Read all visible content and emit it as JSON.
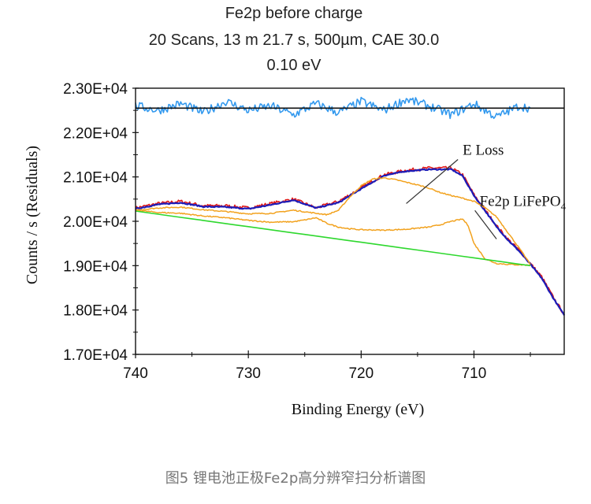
{
  "title": {
    "line1": "Fe2p before charge",
    "line2": "20 Scans,   13 m 21.7 s,    500µm,    CAE 30.0",
    "line3": "0.10 eV"
  },
  "caption": "图5 锂电池正极Fe2p高分辨窄扫分析谱图",
  "chart_data": {
    "type": "line",
    "xlabel": "Binding Energy (eV)",
    "ylabel": "Counts / s   (Residuals)",
    "xlim": [
      740,
      702
    ],
    "ylim": [
      17000,
      23000
    ],
    "x_ticks": [
      740,
      730,
      720,
      710
    ],
    "y_ticks": [
      {
        "value": 17000,
        "label": "1.70E+04"
      },
      {
        "value": 18000,
        "label": "1.80E+04"
      },
      {
        "value": 19000,
        "label": "1.90E+04"
      },
      {
        "value": 20000,
        "label": "2.00E+04"
      },
      {
        "value": 21000,
        "label": "2.10E+04"
      },
      {
        "value": 22000,
        "label": "2.20E+04"
      },
      {
        "value": 23000,
        "label": "2.30E+04"
      }
    ],
    "residual_baseline": 22550,
    "annotations": [
      {
        "text": "E Loss",
        "x": 711,
        "y": 21500,
        "arrow_to": [
          716,
          20400
        ]
      },
      {
        "text": "Fe2p LiFePO",
        "subscript": "4",
        "x": 709.5,
        "y": 20350,
        "arrow_to": [
          708,
          19600
        ]
      }
    ],
    "series": [
      {
        "role": "measured",
        "color": "#e01818",
        "x": [
          740,
          738,
          736,
          734,
          732,
          730,
          728,
          726,
          724,
          722,
          720,
          718,
          716,
          714,
          712,
          711,
          710,
          709,
          708,
          707,
          706,
          705,
          704,
          703,
          702
        ],
        "y": [
          20300,
          20400,
          20450,
          20350,
          20350,
          20300,
          20400,
          20500,
          20300,
          20450,
          20750,
          21050,
          21150,
          21200,
          21200,
          21050,
          20600,
          20250,
          19900,
          19600,
          19350,
          19050,
          18750,
          18300,
          17900
        ]
      },
      {
        "role": "envelope",
        "color": "#1c1cb8",
        "x": [
          740,
          738,
          736,
          734,
          732,
          730,
          728,
          726,
          724,
          722,
          720,
          718,
          716,
          714,
          712,
          711,
          710,
          709,
          708,
          707,
          706,
          705,
          704,
          703,
          702
        ],
        "y": [
          20280,
          20380,
          20420,
          20330,
          20320,
          20280,
          20370,
          20480,
          20300,
          20420,
          20730,
          21030,
          21130,
          21170,
          21170,
          21020,
          20580,
          20230,
          19880,
          19580,
          19330,
          19030,
          18720,
          18280,
          17880
        ]
      },
      {
        "role": "component E Loss",
        "color": "#f2a21e",
        "x": [
          740,
          738,
          736,
          734,
          732,
          730,
          728,
          726,
          724,
          723,
          722,
          721,
          720,
          719,
          718,
          717,
          716,
          715,
          714,
          713,
          712,
          711,
          710,
          709,
          708,
          707,
          706,
          705
        ],
        "y": [
          20250,
          20300,
          20320,
          20260,
          20220,
          20170,
          20180,
          20250,
          20180,
          20150,
          20250,
          20550,
          20800,
          20950,
          20980,
          20940,
          20880,
          20820,
          20750,
          20650,
          20580,
          20520,
          20450,
          20300,
          20100,
          19750,
          19400,
          19030
        ]
      },
      {
        "role": "component Fe2p LiFePO4",
        "color": "#f2a21e",
        "x": [
          740,
          738,
          736,
          734,
          732,
          730,
          728,
          726,
          725,
          724,
          723,
          722,
          721,
          720,
          718,
          716,
          714,
          713,
          712,
          711,
          710.5,
          710,
          709,
          708,
          707,
          706,
          705
        ],
        "y": [
          20250,
          20200,
          20180,
          20120,
          20080,
          20020,
          19980,
          19990,
          20030,
          20080,
          19950,
          19870,
          19830,
          19810,
          19800,
          19820,
          19870,
          19920,
          20000,
          20050,
          19900,
          19500,
          19150,
          19050,
          19030,
          19020,
          19010
        ]
      },
      {
        "role": "background",
        "color": "#2ed82e",
        "x": [
          740,
          705
        ],
        "y": [
          20230,
          19000
        ]
      },
      {
        "role": "residuals",
        "color": "#3399ee",
        "x": [
          740,
          738,
          736,
          734,
          732,
          730,
          728,
          726,
          724,
          722,
          720,
          718,
          716,
          714,
          712,
          710,
          708,
          706,
          705
        ],
        "y": [
          22600,
          22500,
          22650,
          22450,
          22700,
          22500,
          22600,
          22400,
          22650,
          22450,
          22700,
          22500,
          22750,
          22600,
          22400,
          22650,
          22350,
          22600,
          22550
        ]
      }
    ]
  }
}
